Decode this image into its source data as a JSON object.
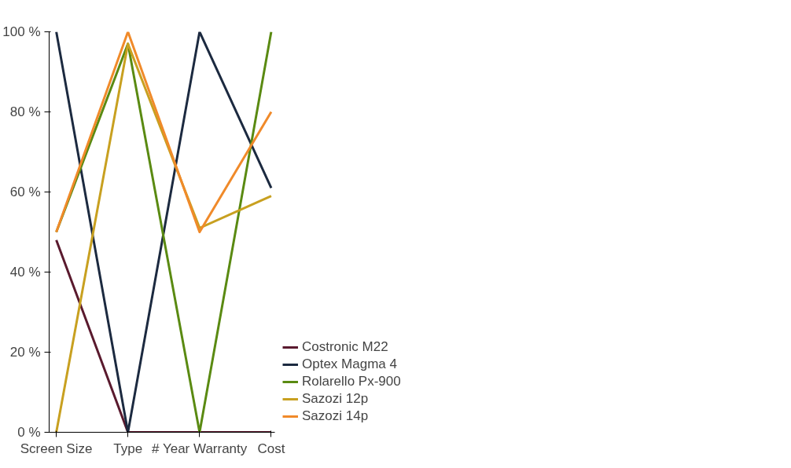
{
  "chart_data": {
    "type": "line",
    "categories": [
      "Screen Size",
      "Type",
      "# Year Warranty",
      "Cost"
    ],
    "ylim": [
      0,
      100
    ],
    "yticks": [
      {
        "value": 0,
        "label": "0 %"
      },
      {
        "value": 20,
        "label": "20 %"
      },
      {
        "value": 40,
        "label": "40 %"
      },
      {
        "value": 60,
        "label": "60 %"
      },
      {
        "value": 80,
        "label": "80 %"
      },
      {
        "value": 100,
        "label": "100 %"
      }
    ],
    "series": [
      {
        "name": "Costronic M22",
        "color": "#5a1a2e",
        "values": [
          48,
          0,
          0,
          0
        ]
      },
      {
        "name": "Optex Magma 4",
        "color": "#1c2a40",
        "values": [
          100,
          0,
          100,
          61
        ]
      },
      {
        "name": "Rolarello Px-900",
        "color": "#5a8a12",
        "values": [
          50,
          97,
          0,
          100
        ]
      },
      {
        "name": "Sazozi 12p",
        "color": "#c8a020",
        "values": [
          0,
          97,
          51,
          59
        ]
      },
      {
        "name": "Sazozi 14p",
        "color": "#f08a2a",
        "values": [
          50,
          100,
          50,
          80
        ]
      }
    ],
    "legend": "right",
    "grid": false,
    "marker": "none",
    "line_style": "solid"
  }
}
